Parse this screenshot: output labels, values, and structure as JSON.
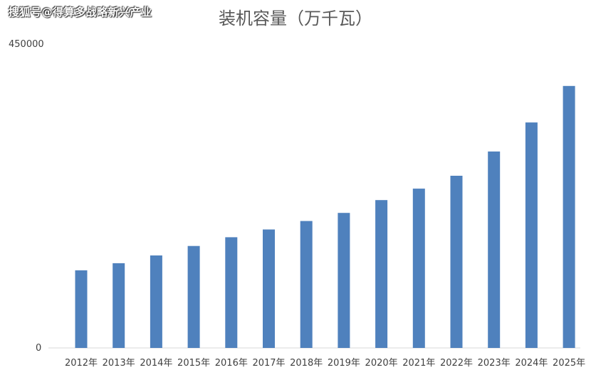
{
  "watermark": "搜狐号@得算多战略新兴产业",
  "chart_data": {
    "type": "bar",
    "title": "装机容量（万千瓦）",
    "categories": [
      "2012年",
      "2013年",
      "2014年",
      "2015年",
      "2016年",
      "2017年",
      "2018年",
      "2019年",
      "2020年",
      "2021年",
      "2022年",
      "2023年",
      "2024年",
      "2025年"
    ],
    "values": [
      115000,
      125500,
      137000,
      151000,
      164000,
      175500,
      188000,
      200000,
      219000,
      236000,
      255000,
      291000,
      334000,
      388000
    ],
    "ylim": [
      0,
      450000
    ],
    "yticks": [
      "0",
      "450000"
    ],
    "bar_color": "#4F81BD",
    "grid": false,
    "legend": "none"
  }
}
